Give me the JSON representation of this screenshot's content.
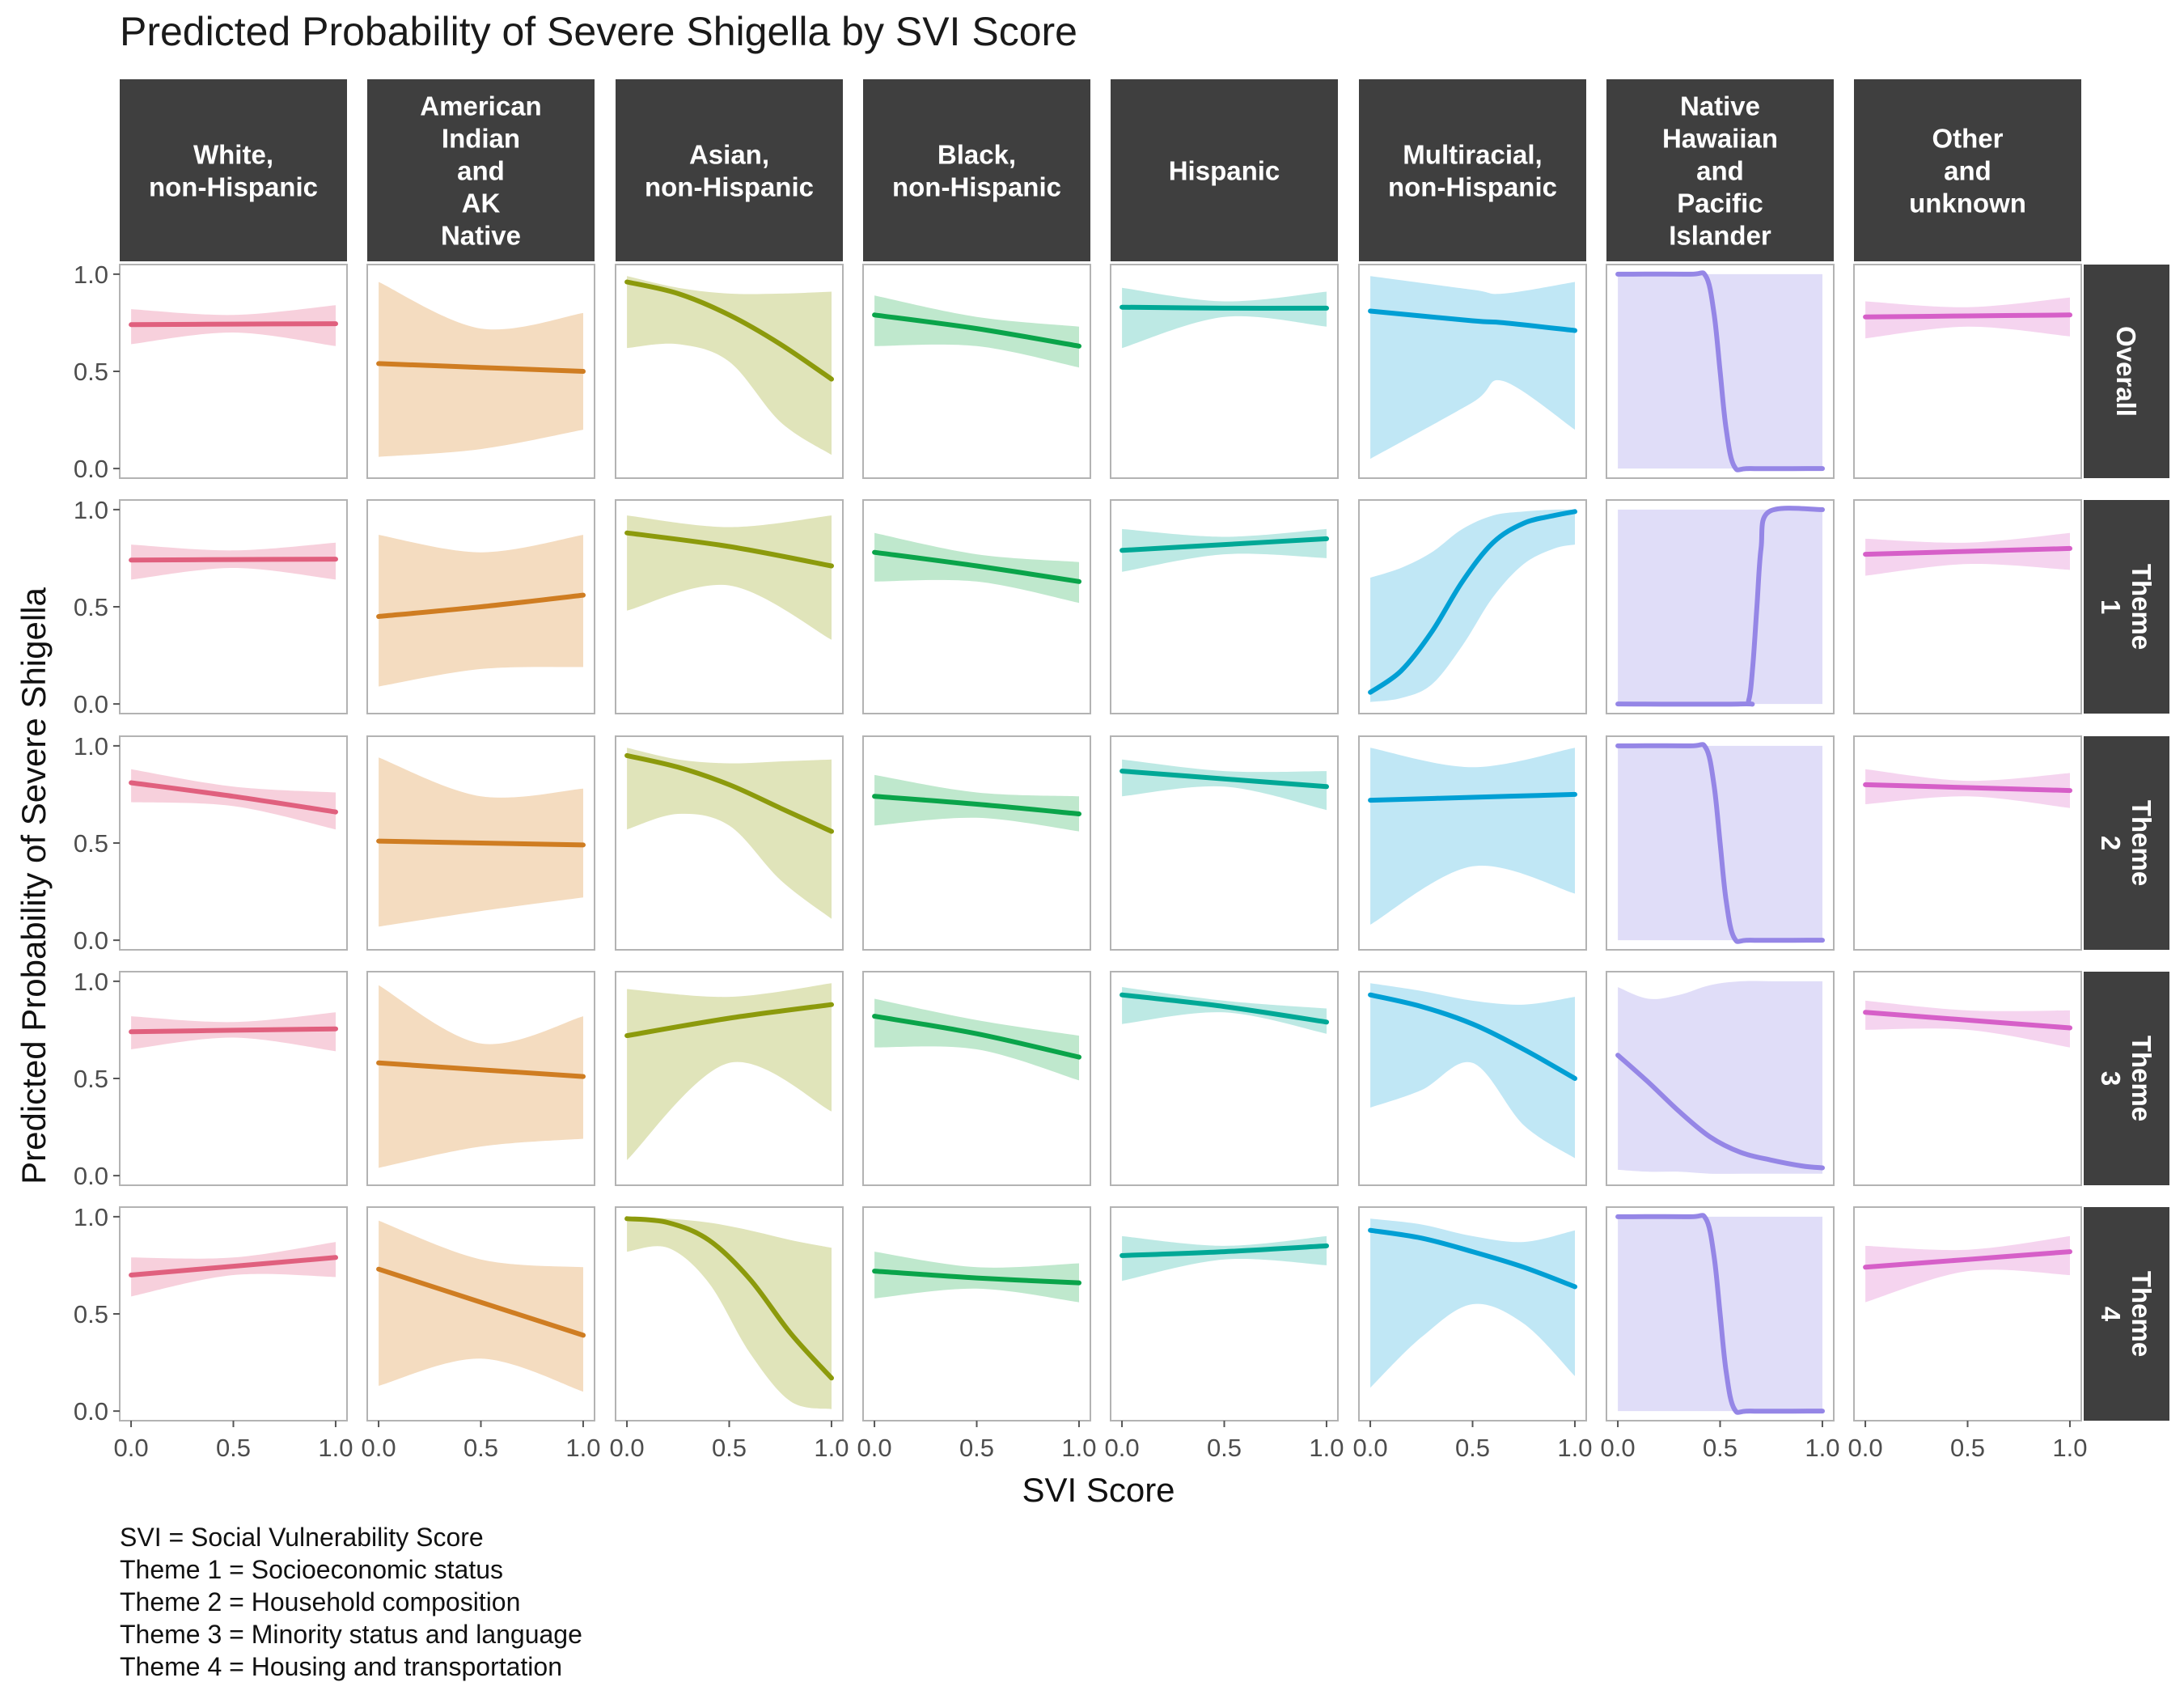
{
  "title": "Predicted Probability of Severe Shigella by SVI Score",
  "caption": [
    "SVI = Social Vulnerability Score",
    "Theme 1 = Socioeconomic status",
    "Theme 2 = Household composition",
    "Theme 3 = Minority status and language",
    "Theme 4 = Housing and transportation"
  ],
  "chart_data": {
    "type": "line",
    "xlabel": "SVI Score",
    "ylabel": "Predicted Probability of Severe Shigella",
    "xlim": [
      0,
      1
    ],
    "ylim": [
      0,
      1
    ],
    "x_ticks": [
      "0.0",
      "0.5",
      "1.0"
    ],
    "y_ticks": [
      "0.0",
      "0.5",
      "1.0"
    ],
    "grid": true,
    "columns": [
      {
        "label": [
          "White,",
          "non-Hispanic"
        ],
        "color": "#e0607e",
        "band_color": "#f7d0dc"
      },
      {
        "label": [
          "American",
          "Indian",
          "and",
          "AK",
          "Native"
        ],
        "color": "#cf7d22",
        "band_color": "#f4dcc0"
      },
      {
        "label": [
          "Asian,",
          "non-Hispanic"
        ],
        "color": "#8c9a0c",
        "band_color": "#e0e4ba"
      },
      {
        "label": [
          "Black,",
          "non-Hispanic"
        ],
        "color": "#0aa44a",
        "band_color": "#bfe8cd"
      },
      {
        "label": [
          "Hispanic"
        ],
        "color": "#00a896",
        "band_color": "#bde9e4"
      },
      {
        "label": [
          "Multiracial,",
          "non-Hispanic"
        ],
        "color": "#009fd4",
        "band_color": "#c0e7f5"
      },
      {
        "label": [
          "Native",
          "Hawaiian",
          "and",
          "Pacific",
          "Islander"
        ],
        "color": "#9586e6",
        "band_color": "#e0ddf8"
      },
      {
        "label": [
          "Other",
          "and",
          "unknown"
        ],
        "color": "#d65fc8",
        "band_color": "#f5d4ef"
      }
    ],
    "rows": [
      {
        "label": [
          "Overall"
        ]
      },
      {
        "label": [
          "Theme",
          "1"
        ]
      },
      {
        "label": [
          "Theme",
          "2"
        ]
      },
      {
        "label": [
          "Theme",
          "3"
        ]
      },
      {
        "label": [
          "Theme",
          "4"
        ]
      }
    ],
    "panels": [
      [
        {
          "x": [
            0,
            0.5,
            1
          ],
          "y": [
            0.74,
            0.743,
            0.745
          ],
          "lower": [
            0.64,
            0.7,
            0.63
          ],
          "upper": [
            0.82,
            0.79,
            0.84
          ]
        },
        {
          "x": [
            0,
            0.5,
            1
          ],
          "y": [
            0.54,
            0.52,
            0.5
          ],
          "lower": [
            0.06,
            0.1,
            0.2
          ],
          "upper": [
            0.96,
            0.72,
            0.8
          ]
        },
        {
          "x": [
            0,
            0.25,
            0.5,
            0.75,
            1
          ],
          "y": [
            0.96,
            0.9,
            0.79,
            0.64,
            0.46
          ],
          "lower": [
            0.62,
            0.64,
            0.55,
            0.24,
            0.07
          ],
          "upper": [
            0.99,
            0.93,
            0.9,
            0.9,
            0.91
          ]
        },
        {
          "x": [
            0,
            0.5,
            1
          ],
          "y": [
            0.79,
            0.72,
            0.63
          ],
          "lower": [
            0.63,
            0.63,
            0.52
          ],
          "upper": [
            0.89,
            0.78,
            0.73
          ]
        },
        {
          "x": [
            0,
            0.5,
            1
          ],
          "y": [
            0.83,
            0.825,
            0.825
          ],
          "lower": [
            0.62,
            0.78,
            0.73
          ],
          "upper": [
            0.93,
            0.86,
            0.91
          ]
        },
        {
          "x": [
            0,
            0.5,
            0.65,
            1
          ],
          "y": [
            0.81,
            0.76,
            0.75,
            0.71
          ],
          "lower": [
            0.05,
            0.34,
            0.45,
            0.2
          ],
          "upper": [
            0.99,
            0.92,
            0.9,
            0.96
          ]
        },
        {
          "x": [
            0,
            0.35,
            0.43,
            0.47,
            0.5,
            0.53,
            0.57,
            0.65,
            1
          ],
          "y": [
            1.0,
            1.0,
            0.99,
            0.8,
            0.5,
            0.2,
            0.01,
            0.0,
            0.0
          ],
          "lower": [
            0,
            0,
            0,
            0,
            0,
            0,
            0,
            0,
            0
          ],
          "upper": [
            1,
            1,
            1,
            1,
            1,
            1,
            1,
            1,
            1
          ]
        },
        {
          "x": [
            0,
            0.5,
            1
          ],
          "y": [
            0.78,
            0.785,
            0.79
          ],
          "lower": [
            0.67,
            0.73,
            0.68
          ],
          "upper": [
            0.86,
            0.83,
            0.88
          ]
        }
      ],
      [
        {
          "x": [
            0,
            0.5,
            1
          ],
          "y": [
            0.74,
            0.743,
            0.745
          ],
          "lower": [
            0.64,
            0.7,
            0.64
          ],
          "upper": [
            0.82,
            0.79,
            0.83
          ]
        },
        {
          "x": [
            0,
            0.5,
            1
          ],
          "y": [
            0.45,
            0.5,
            0.56
          ],
          "lower": [
            0.09,
            0.18,
            0.19
          ],
          "upper": [
            0.87,
            0.78,
            0.87
          ]
        },
        {
          "x": [
            0,
            0.5,
            1
          ],
          "y": [
            0.88,
            0.81,
            0.71
          ],
          "lower": [
            0.48,
            0.61,
            0.33
          ],
          "upper": [
            0.97,
            0.91,
            0.97
          ]
        },
        {
          "x": [
            0,
            0.5,
            1
          ],
          "y": [
            0.78,
            0.71,
            0.63
          ],
          "lower": [
            0.63,
            0.63,
            0.52
          ],
          "upper": [
            0.88,
            0.77,
            0.73
          ]
        },
        {
          "x": [
            0,
            0.5,
            1
          ],
          "y": [
            0.79,
            0.82,
            0.85
          ],
          "lower": [
            0.68,
            0.77,
            0.75
          ],
          "upper": [
            0.9,
            0.86,
            0.9
          ]
        },
        {
          "x": [
            0,
            0.15,
            0.3,
            0.45,
            0.6,
            0.75,
            0.9,
            1
          ],
          "y": [
            0.06,
            0.17,
            0.37,
            0.63,
            0.83,
            0.93,
            0.97,
            0.99
          ],
          "lower": [
            0.01,
            0.03,
            0.1,
            0.3,
            0.55,
            0.72,
            0.8,
            0.82
          ],
          "upper": [
            0.65,
            0.7,
            0.78,
            0.9,
            0.97,
            0.99,
            1.0,
            1.0
          ]
        },
        {
          "x": [
            0,
            0.6,
            0.64,
            0.66,
            0.68,
            0.7,
            0.74,
            1
          ],
          "y": [
            0.0,
            0.0,
            0.02,
            0.2,
            0.5,
            0.8,
            0.99,
            1.0
          ],
          "lower": [
            0,
            0,
            0,
            0,
            0,
            0,
            0,
            0
          ],
          "upper": [
            1,
            1,
            1,
            1,
            1,
            1,
            1,
            1
          ]
        },
        {
          "x": [
            0,
            0.5,
            1
          ],
          "y": [
            0.77,
            0.785,
            0.8
          ],
          "lower": [
            0.66,
            0.72,
            0.69
          ],
          "upper": [
            0.85,
            0.83,
            0.88
          ]
        }
      ],
      [
        {
          "x": [
            0,
            0.5,
            1
          ],
          "y": [
            0.81,
            0.74,
            0.66
          ],
          "lower": [
            0.71,
            0.69,
            0.57
          ],
          "upper": [
            0.88,
            0.79,
            0.76
          ]
        },
        {
          "x": [
            0,
            0.5,
            1
          ],
          "y": [
            0.51,
            0.5,
            0.49
          ],
          "lower": [
            0.07,
            0.15,
            0.22
          ],
          "upper": [
            0.94,
            0.74,
            0.78
          ]
        },
        {
          "x": [
            0,
            0.25,
            0.5,
            0.75,
            1
          ],
          "y": [
            0.95,
            0.89,
            0.8,
            0.68,
            0.56
          ],
          "lower": [
            0.57,
            0.65,
            0.59,
            0.31,
            0.11
          ],
          "upper": [
            0.99,
            0.93,
            0.91,
            0.92,
            0.93
          ]
        },
        {
          "x": [
            0,
            0.5,
            1
          ],
          "y": [
            0.74,
            0.7,
            0.65
          ],
          "lower": [
            0.59,
            0.63,
            0.56
          ],
          "upper": [
            0.85,
            0.76,
            0.74
          ]
        },
        {
          "x": [
            0,
            0.5,
            1
          ],
          "y": [
            0.87,
            0.83,
            0.79
          ],
          "lower": [
            0.74,
            0.79,
            0.67
          ],
          "upper": [
            0.93,
            0.87,
            0.87
          ]
        },
        {
          "x": [
            0,
            0.5,
            1
          ],
          "y": [
            0.72,
            0.735,
            0.75
          ],
          "lower": [
            0.08,
            0.38,
            0.24
          ],
          "upper": [
            0.99,
            0.89,
            0.99
          ]
        },
        {
          "x": [
            0,
            0.35,
            0.43,
            0.47,
            0.5,
            0.53,
            0.57,
            0.65,
            1
          ],
          "y": [
            1.0,
            1.0,
            0.99,
            0.8,
            0.5,
            0.2,
            0.01,
            0.0,
            0.0
          ],
          "lower": [
            0,
            0,
            0,
            0,
            0,
            0,
            0,
            0,
            0
          ],
          "upper": [
            1,
            1,
            1,
            1,
            1,
            1,
            1,
            1,
            1
          ]
        },
        {
          "x": [
            0,
            0.5,
            1
          ],
          "y": [
            0.8,
            0.785,
            0.77
          ],
          "lower": [
            0.7,
            0.74,
            0.68
          ],
          "upper": [
            0.88,
            0.82,
            0.86
          ]
        }
      ],
      [
        {
          "x": [
            0,
            0.5,
            1
          ],
          "y": [
            0.74,
            0.748,
            0.755
          ],
          "lower": [
            0.65,
            0.71,
            0.64
          ],
          "upper": [
            0.82,
            0.79,
            0.84
          ]
        },
        {
          "x": [
            0,
            0.5,
            1
          ],
          "y": [
            0.58,
            0.545,
            0.51
          ],
          "lower": [
            0.04,
            0.15,
            0.19
          ],
          "upper": [
            0.98,
            0.68,
            0.82
          ]
        },
        {
          "x": [
            0,
            0.5,
            1
          ],
          "y": [
            0.72,
            0.81,
            0.88
          ],
          "lower": [
            0.08,
            0.58,
            0.33
          ],
          "upper": [
            0.96,
            0.92,
            0.99
          ]
        },
        {
          "x": [
            0,
            0.5,
            1
          ],
          "y": [
            0.82,
            0.73,
            0.61
          ],
          "lower": [
            0.66,
            0.65,
            0.49
          ],
          "upper": [
            0.91,
            0.8,
            0.72
          ]
        },
        {
          "x": [
            0,
            0.5,
            1
          ],
          "y": [
            0.93,
            0.87,
            0.79
          ],
          "lower": [
            0.78,
            0.84,
            0.73
          ],
          "upper": [
            0.97,
            0.9,
            0.86
          ]
        },
        {
          "x": [
            0,
            0.25,
            0.5,
            0.75,
            1
          ],
          "y": [
            0.93,
            0.87,
            0.78,
            0.65,
            0.5
          ],
          "lower": [
            0.35,
            0.44,
            0.58,
            0.26,
            0.09
          ],
          "upper": [
            0.99,
            0.95,
            0.9,
            0.88,
            0.92
          ]
        },
        {
          "x": [
            0,
            0.15,
            0.3,
            0.45,
            0.6,
            0.75,
            0.9,
            1
          ],
          "y": [
            0.62,
            0.48,
            0.33,
            0.2,
            0.12,
            0.08,
            0.05,
            0.04
          ],
          "lower": [
            0.03,
            0.02,
            0.02,
            0.01,
            0.01,
            0.01,
            0.01,
            0.01
          ],
          "upper": [
            0.97,
            0.91,
            0.93,
            0.98,
            1.0,
            1.0,
            1.0,
            1.0
          ]
        },
        {
          "x": [
            0,
            0.5,
            1
          ],
          "y": [
            0.84,
            0.8,
            0.76
          ],
          "lower": [
            0.75,
            0.75,
            0.66
          ],
          "upper": [
            0.9,
            0.85,
            0.85
          ]
        }
      ],
      [
        {
          "x": [
            0,
            0.5,
            1
          ],
          "y": [
            0.7,
            0.745,
            0.79
          ],
          "lower": [
            0.59,
            0.7,
            0.69
          ],
          "upper": [
            0.79,
            0.79,
            0.87
          ]
        },
        {
          "x": [
            0,
            0.5,
            1
          ],
          "y": [
            0.73,
            0.56,
            0.39
          ],
          "lower": [
            0.13,
            0.27,
            0.1
          ],
          "upper": [
            0.98,
            0.78,
            0.74
          ]
        },
        {
          "x": [
            0,
            0.2,
            0.4,
            0.6,
            0.8,
            1
          ],
          "y": [
            0.99,
            0.97,
            0.88,
            0.68,
            0.4,
            0.17
          ],
          "lower": [
            0.82,
            0.84,
            0.66,
            0.3,
            0.05,
            0.01
          ],
          "upper": [
            1.0,
            0.99,
            0.97,
            0.93,
            0.88,
            0.84
          ]
        },
        {
          "x": [
            0,
            0.5,
            1
          ],
          "y": [
            0.72,
            0.685,
            0.66
          ],
          "lower": [
            0.58,
            0.63,
            0.56
          ],
          "upper": [
            0.82,
            0.74,
            0.76
          ]
        },
        {
          "x": [
            0,
            0.5,
            1
          ],
          "y": [
            0.8,
            0.82,
            0.85
          ],
          "lower": [
            0.67,
            0.78,
            0.75
          ],
          "upper": [
            0.9,
            0.85,
            0.9
          ]
        },
        {
          "x": [
            0,
            0.25,
            0.5,
            0.75,
            1
          ],
          "y": [
            0.93,
            0.89,
            0.82,
            0.74,
            0.64
          ],
          "lower": [
            0.12,
            0.38,
            0.55,
            0.45,
            0.18
          ],
          "upper": [
            0.99,
            0.96,
            0.9,
            0.87,
            0.93
          ]
        },
        {
          "x": [
            0,
            0.35,
            0.43,
            0.47,
            0.5,
            0.53,
            0.57,
            0.65,
            1
          ],
          "y": [
            1.0,
            1.0,
            0.99,
            0.8,
            0.5,
            0.2,
            0.01,
            0.0,
            0.0
          ],
          "lower": [
            0,
            0,
            0,
            0,
            0,
            0,
            0,
            0,
            0
          ],
          "upper": [
            1,
            1,
            1,
            1,
            1,
            1,
            1,
            1,
            1
          ]
        },
        {
          "x": [
            0,
            0.5,
            1
          ],
          "y": [
            0.74,
            0.78,
            0.82
          ],
          "lower": [
            0.56,
            0.72,
            0.7
          ],
          "upper": [
            0.85,
            0.83,
            0.9
          ]
        }
      ]
    ]
  }
}
